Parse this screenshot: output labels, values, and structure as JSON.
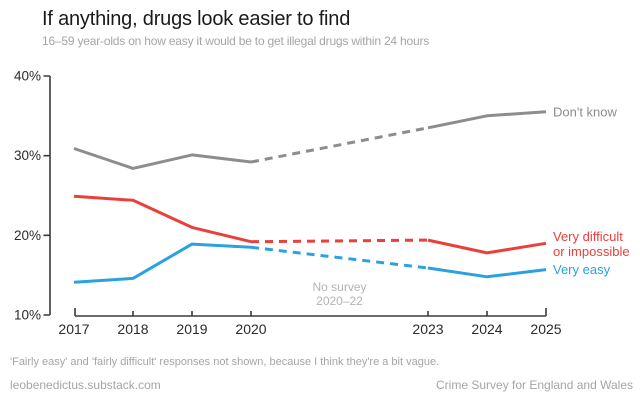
{
  "chart_data": {
    "type": "line",
    "title": "If anything, drugs look easier to find",
    "subtitle": "16–59 year-olds on how easy it would be to get illegal drugs within 24 hours",
    "x": [
      2017,
      2018,
      2019,
      2020,
      2023,
      2024,
      2025
    ],
    "series": [
      {
        "name": "dont-know",
        "label_lines": [
          "Don't know"
        ],
        "color": "#8d8d8d",
        "values": [
          30.9,
          28.4,
          30.1,
          29.2,
          33.5,
          35.0,
          35.5
        ]
      },
      {
        "name": "very-difficult",
        "label_lines": [
          "Very difficult",
          "or impossible"
        ],
        "color": "#e8413c",
        "values": [
          24.9,
          24.4,
          21.0,
          19.2,
          19.4,
          17.8,
          19.0
        ]
      },
      {
        "name": "very-easy",
        "label_lines": [
          "Very easy"
        ],
        "color": "#2ba1e0",
        "values": [
          14.1,
          14.6,
          18.9,
          18.5,
          15.9,
          14.8,
          15.7
        ]
      }
    ],
    "dash_gap": {
      "from": 2020,
      "to": 2023
    },
    "y_axis": {
      "range": [
        10,
        40
      ],
      "ticks": [
        {
          "value": 10,
          "label": "10%"
        },
        {
          "value": 20,
          "label": "20%"
        },
        {
          "value": 30,
          "label": "30%"
        },
        {
          "value": 40,
          "label": "40%"
        }
      ]
    },
    "x_axis": {
      "ticks": [
        {
          "year": 2017,
          "label": "2017"
        },
        {
          "year": 2018,
          "label": "2018"
        },
        {
          "year": 2019,
          "label": "2019"
        },
        {
          "year": 2020,
          "label": "2020"
        },
        {
          "year": 2023,
          "label": "2023"
        },
        {
          "year": 2024,
          "label": "2024"
        },
        {
          "year": 2025,
          "label": "2025"
        }
      ],
      "inner_tick_years": [
        2018,
        2019,
        2020,
        2023,
        2024
      ]
    },
    "annotation": {
      "lines": [
        "No survey",
        "2020–22"
      ],
      "x": 2021.5
    },
    "grid": "off",
    "legend_position": "right-of-line-ends",
    "colors": {
      "axis": "#3a3a3a",
      "tick_text": "#2b2b2b",
      "annotation_text": "#b3b3b3"
    }
  },
  "footer": {
    "note": "'Fairly easy' and 'fairly difficult' responses not shown, because I think they're a bit vague.",
    "left": "leobenedictus.substack.com",
    "right": "Crime Survey for England and Wales"
  }
}
